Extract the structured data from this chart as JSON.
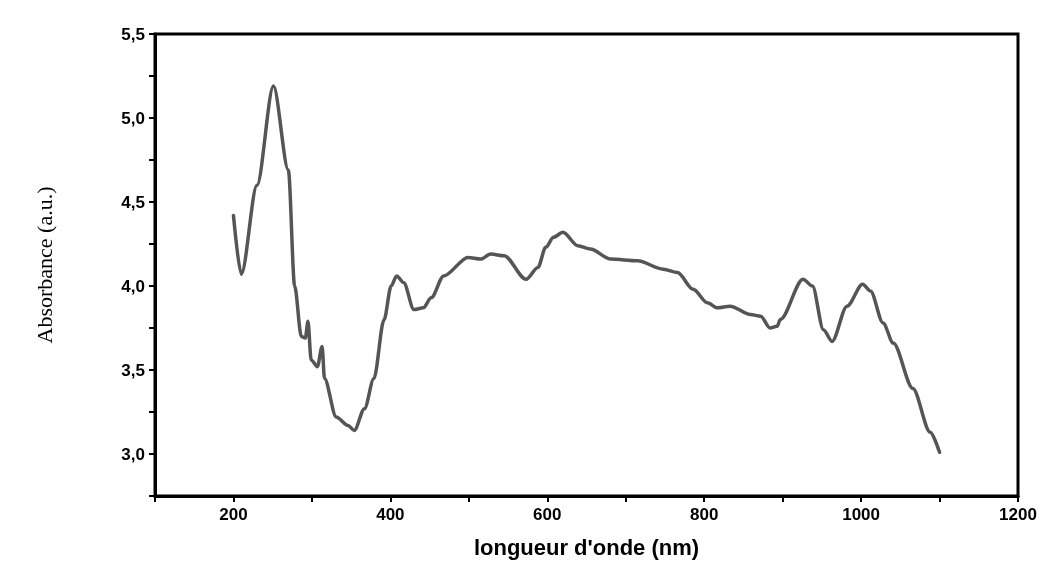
{
  "chart_data": {
    "type": "line",
    "xlabel": "longueur d'onde (nm)",
    "ylabel": "Absorbance (a.u.)",
    "xlim": [
      100,
      1200
    ],
    "ylim": [
      2.75,
      5.5
    ],
    "xticks": [
      {
        "value": 100,
        "label": null
      },
      200,
      {
        "value": 300,
        "label": null
      },
      400,
      {
        "value": 500,
        "label": null
      },
      600,
      {
        "value": 700,
        "label": null
      },
      800,
      {
        "value": 900,
        "label": null
      },
      1000,
      {
        "value": 1100,
        "label": null
      },
      1200
    ],
    "yticks": [
      {
        "value": 2.75,
        "label": null
      },
      {
        "value": 3,
        "label": "3,0"
      },
      {
        "value": 3.25,
        "label": null
      },
      {
        "value": 3.5,
        "label": "3,5"
      },
      {
        "value": 3.75,
        "label": null
      },
      {
        "value": 4,
        "label": "4,0"
      },
      {
        "value": 4.25,
        "label": null
      },
      {
        "value": 4.5,
        "label": "4,5"
      },
      {
        "value": 4.75,
        "label": null
      },
      {
        "value": 5,
        "label": "5,0"
      },
      {
        "value": 5.25,
        "label": null
      },
      {
        "value": 5.5,
        "label": "5,5"
      }
    ],
    "grid": false,
    "marker": "none",
    "line_style": "solid",
    "series": [
      {
        "color": "#555555",
        "x": [
          200,
          210,
          230,
          251,
          270,
          278,
          286.5,
          291.6,
          295,
          299,
          307,
          313,
          316,
          331,
          346,
          354,
          367,
          379,
          392,
          401,
          408,
          417,
          430,
          442,
          452,
          468,
          499,
          515,
          528,
          545,
          573,
          588,
          598,
          608,
          620,
          639,
          655,
          681,
          715,
          748,
          766,
          786,
          804,
          817,
          833,
          859,
          872,
          884,
          893,
          897,
          926,
          938,
          952,
          963,
          982,
          1002,
          1012,
          1028,
          1041,
          1066,
          1088,
          1100
        ],
        "values": [
          4.42,
          4.07,
          4.6,
          5.19,
          4.69,
          4.0,
          3.7,
          3.69,
          3.79,
          3.56,
          3.52,
          3.64,
          3.45,
          3.22,
          3.17,
          3.14,
          3.27,
          3.45,
          3.8,
          4.0,
          4.06,
          4.02,
          3.86,
          3.87,
          3.93,
          4.06,
          4.17,
          4.16,
          4.19,
          4.18,
          4.04,
          4.11,
          4.23,
          4.29,
          4.32,
          4.24,
          4.22,
          4.16,
          4.15,
          4.1,
          4.08,
          3.98,
          3.9,
          3.87,
          3.88,
          3.83,
          3.82,
          3.75,
          3.76,
          3.8,
          4.04,
          4.0,
          3.74,
          3.67,
          3.88,
          4.01,
          3.97,
          3.78,
          3.66,
          3.39,
          3.13,
          3.01
        ]
      }
    ]
  }
}
